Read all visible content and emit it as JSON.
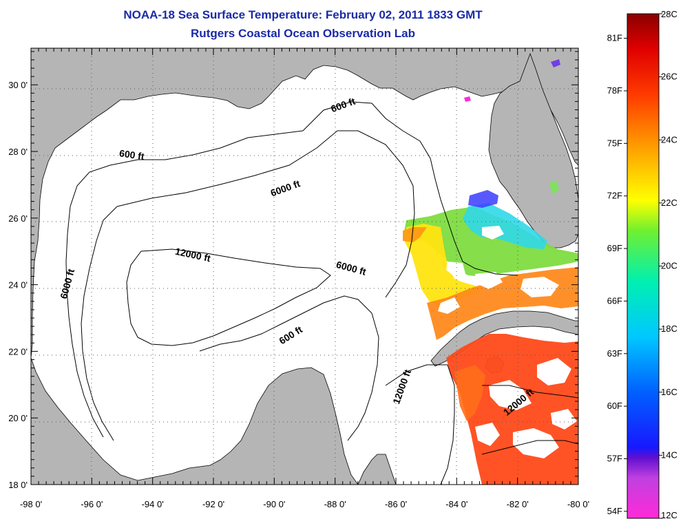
{
  "title": {
    "line1": "NOAA-18 Sea Surface Temperature:  February 02, 2011 1833 GMT",
    "line2": "Rutgers Coastal Ocean Observation Lab"
  },
  "map": {
    "lon_ticks": [
      "-98 0'",
      "-96 0'",
      "-94 0'",
      "-92 0'",
      "-90 0'",
      "-88 0'",
      "-86 0'",
      "-84 0'",
      "-82 0'",
      "-80 0'"
    ],
    "lat_ticks": [
      "30 0'",
      "28 0'",
      "26 0'",
      "24 0'",
      "22 0'",
      "20 0'",
      "18 0'"
    ],
    "contour_labels": [
      {
        "text": "600 ft",
        "lon": -87.7,
        "lat": 29.3
      },
      {
        "text": "600 ft",
        "lon": -94.7,
        "lat": 27.8
      },
      {
        "text": "6000 ft",
        "lon": -89.6,
        "lat": 26.8
      },
      {
        "text": "12000 ft",
        "lon": -92.7,
        "lat": 24.8
      },
      {
        "text": "6000 ft",
        "lon": -87.5,
        "lat": 24.4
      },
      {
        "text": "6000 ft",
        "lon": -96.7,
        "lat": 24.0
      },
      {
        "text": "600 ft",
        "lon": -89.4,
        "lat": 22.4
      },
      {
        "text": "12000 ft",
        "lon": -85.7,
        "lat": 20.9
      },
      {
        "text": "12000 ft",
        "lon": -81.9,
        "lat": 20.4
      }
    ],
    "land_color": "#b5b5b5",
    "water_color": "#ffffff"
  },
  "colorbar": {
    "celsius_labels": [
      "28C",
      "26C",
      "24C",
      "22C",
      "20C",
      "18C",
      "16C",
      "14C",
      "12C"
    ],
    "fahrenheit_labels": [
      "81F",
      "78F",
      "75F",
      "72F",
      "69F",
      "66F",
      "63F",
      "60F",
      "57F",
      "54F"
    ],
    "range_c": [
      12,
      28
    ]
  }
}
